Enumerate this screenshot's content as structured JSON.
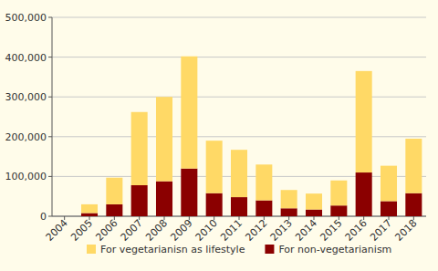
{
  "chart_data": {
    "type": "bar",
    "stacked": true,
    "grid": true,
    "legend": "bottom",
    "categories": [
      "2004",
      "2005",
      "2006",
      "2007",
      "2008",
      "2009",
      "2010",
      "2011",
      "2012",
      "2013",
      "2014",
      "2015",
      "2016",
      "2017",
      "2018"
    ],
    "series": [
      {
        "name": "For non-vegetarianism",
        "color": "#8b0000",
        "values": [
          0,
          8000,
          30000,
          78000,
          88000,
          120000,
          58000,
          48000,
          40000,
          20000,
          17000,
          27000,
          110000,
          38000,
          58000
        ]
      },
      {
        "name": "For vegetarianisn as lifestyle",
        "color": "#ffd966",
        "values": [
          0,
          22000,
          67000,
          184000,
          212000,
          282000,
          132000,
          119000,
          90000,
          46000,
          40000,
          63000,
          255000,
          89000,
          137000
        ]
      }
    ],
    "ylim": [
      0,
      500000
    ],
    "yticks": [
      0,
      {
        "value": 100000,
        "label": "100,000"
      },
      {
        "value": 200000,
        "label": "200,000"
      },
      {
        "value": 300000,
        "label": "300,000"
      },
      {
        "value": 400000,
        "label": "400,000"
      },
      {
        "value": 500000,
        "label": "500,000"
      }
    ]
  }
}
